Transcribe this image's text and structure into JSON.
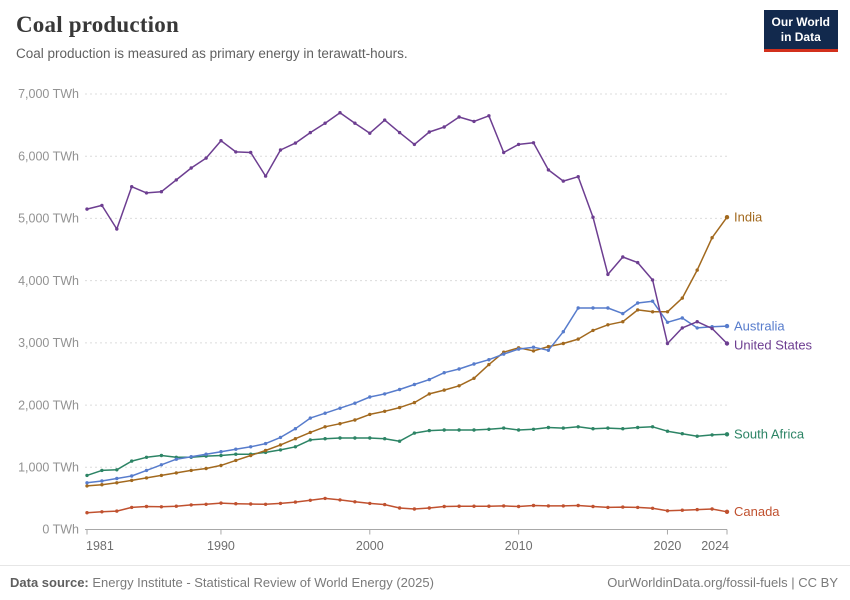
{
  "header": {
    "title": "Coal production",
    "subtitle": "Coal production is measured as primary energy in terawatt-hours."
  },
  "logo": {
    "line1": "Our World",
    "line2": "in Data"
  },
  "chart_data": {
    "type": "line",
    "title": "Coal production",
    "subtitle": "Coal production is measured as primary energy in terawatt-hours.",
    "unit": "TWh",
    "grid": "dashed-horizontal",
    "legend_position": "right-end-labels",
    "ylim": [
      0,
      7000
    ],
    "y_ticks": [
      {
        "v": 0,
        "label": "0 TWh"
      },
      {
        "v": 1000,
        "label": "1,000 TWh"
      },
      {
        "v": 2000,
        "label": "2,000 TWh"
      },
      {
        "v": 3000,
        "label": "3,000 TWh"
      },
      {
        "v": 4000,
        "label": "4,000 TWh"
      },
      {
        "v": 5000,
        "label": "5,000 TWh"
      },
      {
        "v": 6000,
        "label": "6,000 TWh"
      },
      {
        "v": 7000,
        "label": "7,000 TWh"
      }
    ],
    "x_ticks": [
      1981,
      1990,
      2000,
      2010,
      2020,
      2024
    ],
    "x": [
      1981,
      1982,
      1983,
      1984,
      1985,
      1986,
      1987,
      1988,
      1989,
      1990,
      1991,
      1992,
      1993,
      1994,
      1995,
      1996,
      1997,
      1998,
      1999,
      2000,
      2001,
      2002,
      2003,
      2004,
      2005,
      2006,
      2007,
      2008,
      2009,
      2010,
      2011,
      2012,
      2013,
      2014,
      2015,
      2016,
      2017,
      2018,
      2019,
      2020,
      2021,
      2022,
      2023,
      2024
    ],
    "series": [
      {
        "name": "India",
        "color": "#A2691E",
        "values": [
          700,
          720,
          750,
          790,
          830,
          870,
          910,
          950,
          980,
          1030,
          1110,
          1190,
          1270,
          1360,
          1460,
          1560,
          1650,
          1700,
          1760,
          1850,
          1900,
          1960,
          2040,
          2180,
          2240,
          2310,
          2430,
          2650,
          2850,
          2920,
          2870,
          2940,
          2990,
          3060,
          3200,
          3290,
          3340,
          3530,
          3500,
          3500,
          3720,
          4170,
          4690,
          5020
        ]
      },
      {
        "name": "Australia",
        "color": "#577CCC",
        "values": [
          750,
          780,
          820,
          860,
          950,
          1040,
          1130,
          1170,
          1210,
          1250,
          1290,
          1330,
          1380,
          1480,
          1620,
          1790,
          1870,
          1950,
          2030,
          2130,
          2180,
          2250,
          2330,
          2410,
          2520,
          2580,
          2660,
          2730,
          2820,
          2900,
          2930,
          2880,
          3180,
          3560,
          3560,
          3560,
          3470,
          3640,
          3670,
          3330,
          3400,
          3240,
          3260,
          3270
        ]
      },
      {
        "name": "United States",
        "color": "#6D3E91",
        "values": [
          5150,
          5210,
          4830,
          5510,
          5410,
          5430,
          5620,
          5810,
          5970,
          6250,
          6070,
          6060,
          5680,
          6100,
          6210,
          6380,
          6530,
          6700,
          6530,
          6370,
          6580,
          6380,
          6190,
          6390,
          6470,
          6630,
          6560,
          6650,
          6060,
          6190,
          6215,
          5780,
          5600,
          5670,
          5020,
          4100,
          4380,
          4290,
          4010,
          2990,
          3240,
          3340,
          3230,
          2990
        ]
      },
      {
        "name": "South Africa",
        "color": "#2C8465",
        "values": [
          870,
          950,
          960,
          1100,
          1160,
          1190,
          1160,
          1160,
          1180,
          1190,
          1210,
          1210,
          1240,
          1280,
          1330,
          1440,
          1460,
          1470,
          1470,
          1470,
          1460,
          1420,
          1550,
          1590,
          1600,
          1600,
          1600,
          1610,
          1630,
          1600,
          1610,
          1640,
          1630,
          1650,
          1620,
          1630,
          1620,
          1640,
          1650,
          1580,
          1540,
          1500,
          1520,
          1530
        ]
      },
      {
        "name": "Canada",
        "color": "#C0512F",
        "values": [
          270,
          285,
          295,
          355,
          370,
          365,
          375,
          395,
          405,
          425,
          415,
          410,
          405,
          420,
          440,
          470,
          500,
          475,
          445,
          420,
          400,
          345,
          330,
          345,
          370,
          375,
          375,
          375,
          380,
          370,
          385,
          380,
          380,
          385,
          370,
          355,
          360,
          355,
          340,
          300,
          310,
          320,
          330,
          285
        ]
      }
    ],
    "draw_order": [
      3,
      4,
      0,
      1,
      2
    ]
  },
  "footer": {
    "source_label": "Data source:",
    "source": "Energy Institute - Statistical Review of World Energy (2025)",
    "link": "OurWorldinData.org/fossil-fuels",
    "separator": "|",
    "license": "CC BY"
  }
}
